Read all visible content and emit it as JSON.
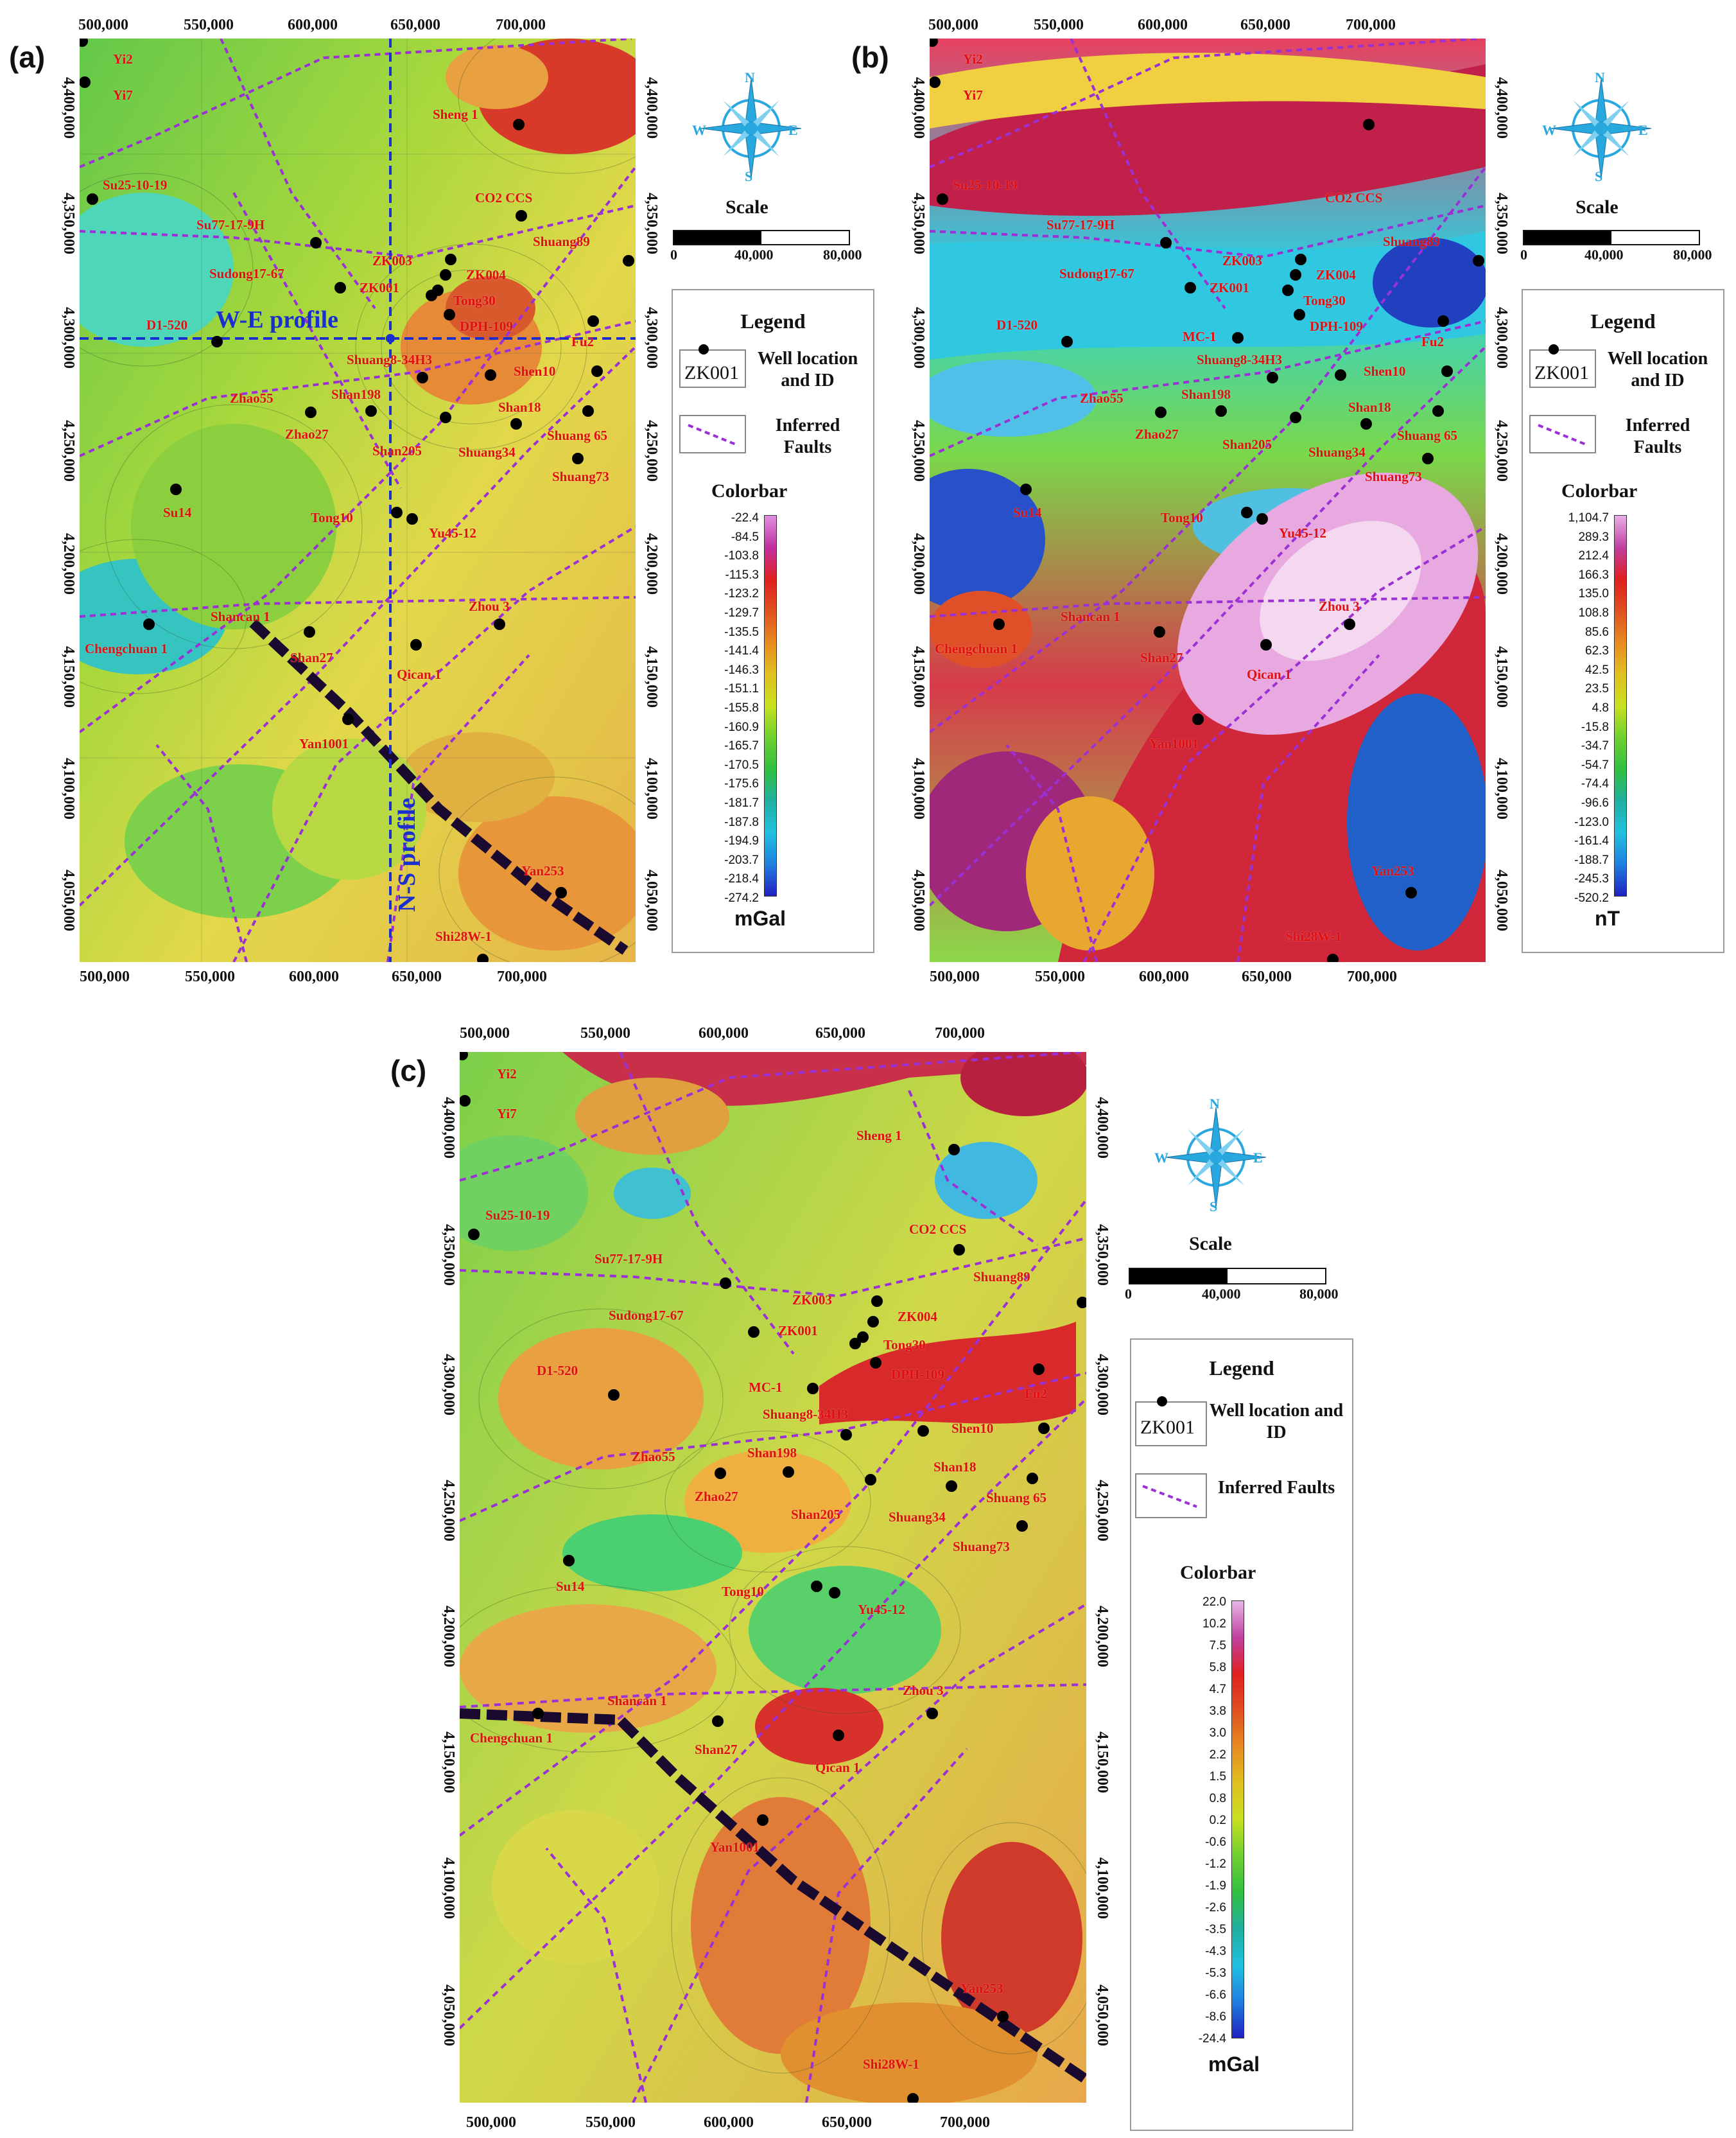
{
  "panels": [
    {
      "letter": "(a)",
      "unit": "mGal",
      "colorbar_title": "Colorbar",
      "colorbar_values": [
        "-22.4",
        "-84.5",
        "-103.8",
        "-115.3",
        "-123.2",
        "-129.7",
        "-135.5",
        "-141.4",
        "-146.3",
        "-151.1",
        "-155.8",
        "-160.9",
        "-165.7",
        "-170.5",
        "-175.6",
        "-181.7",
        "-187.8",
        "-194.9",
        "-203.7",
        "-218.4",
        "-274.2"
      ],
      "profiles": {
        "we": "W-E profile",
        "ns": "N-S profile"
      }
    },
    {
      "letter": "(b)",
      "unit": "nT",
      "colorbar_title": "Colorbar",
      "colorbar_values": [
        "1,104.7",
        "289.3",
        "212.4",
        "166.3",
        "135.0",
        "108.8",
        "85.6",
        "62.3",
        "42.5",
        "23.5",
        "4.8",
        "-15.8",
        "-34.7",
        "-54.7",
        "-74.4",
        "-96.6",
        "-123.0",
        "-161.4",
        "-188.7",
        "-245.3",
        "-520.2"
      ]
    },
    {
      "letter": "(c)",
      "unit": "mGal",
      "colorbar_title": "Colorbar",
      "colorbar_values": [
        "22.0",
        "10.2",
        "7.5",
        "5.8",
        "4.7",
        "3.8",
        "3.0",
        "2.2",
        "1.5",
        "0.8",
        "0.2",
        "-0.6",
        "-1.2",
        "-1.9",
        "-2.6",
        "-3.5",
        "-4.3",
        "-5.3",
        "-6.6",
        "-8.6",
        "-24.4"
      ]
    }
  ],
  "axes": {
    "x_ticks": [
      "500,000",
      "550,000",
      "600,000",
      "650,000",
      "700,000"
    ],
    "y_ticks": [
      "4,400,000",
      "4,350,000",
      "4,300,000",
      "4,250,000",
      "4,200,000",
      "4,150,000",
      "4,100,000",
      "4,050,000"
    ]
  },
  "compass": {
    "n": "N",
    "s": "S",
    "e": "E",
    "w": "W"
  },
  "scale": {
    "title": "Scale",
    "ticks": [
      "0",
      "40,000",
      "80,000"
    ]
  },
  "legend": {
    "title": "Legend",
    "well_symbol_id": "ZK001",
    "well_text": "Well location and ID",
    "fault_text": "Inferred Faults"
  },
  "wells": [
    "Yi2",
    "Yi7",
    "Sheng 1",
    "Su25-10-19",
    "CO2 CCS",
    "Su77-17-9H",
    "Shuang89",
    "Sudong17-67",
    "ZK003",
    "ZK001",
    "ZK004",
    "Tong30",
    "DPH-109",
    "D1-520",
    "MC-1",
    "Fu2",
    "Shuang8-34H3",
    "Shen10",
    "Zhao55",
    "Shan198",
    "Shan18",
    "Zhao27",
    "Shan205",
    "Shuang 65",
    "Shuang34",
    "Shuang73",
    "Su14",
    "Tong10",
    "Yu45-12",
    "Zhou 3",
    "Shancan 1",
    "Chengchuan 1",
    "Shan27",
    "Qican 1",
    "Yan1001",
    "Yan253",
    "Shi28W-1"
  ],
  "colors": {
    "well_label": "#e01010",
    "fault": "#9b30d6",
    "profile": "#1a2fd0",
    "compass": "#29a8e0"
  }
}
